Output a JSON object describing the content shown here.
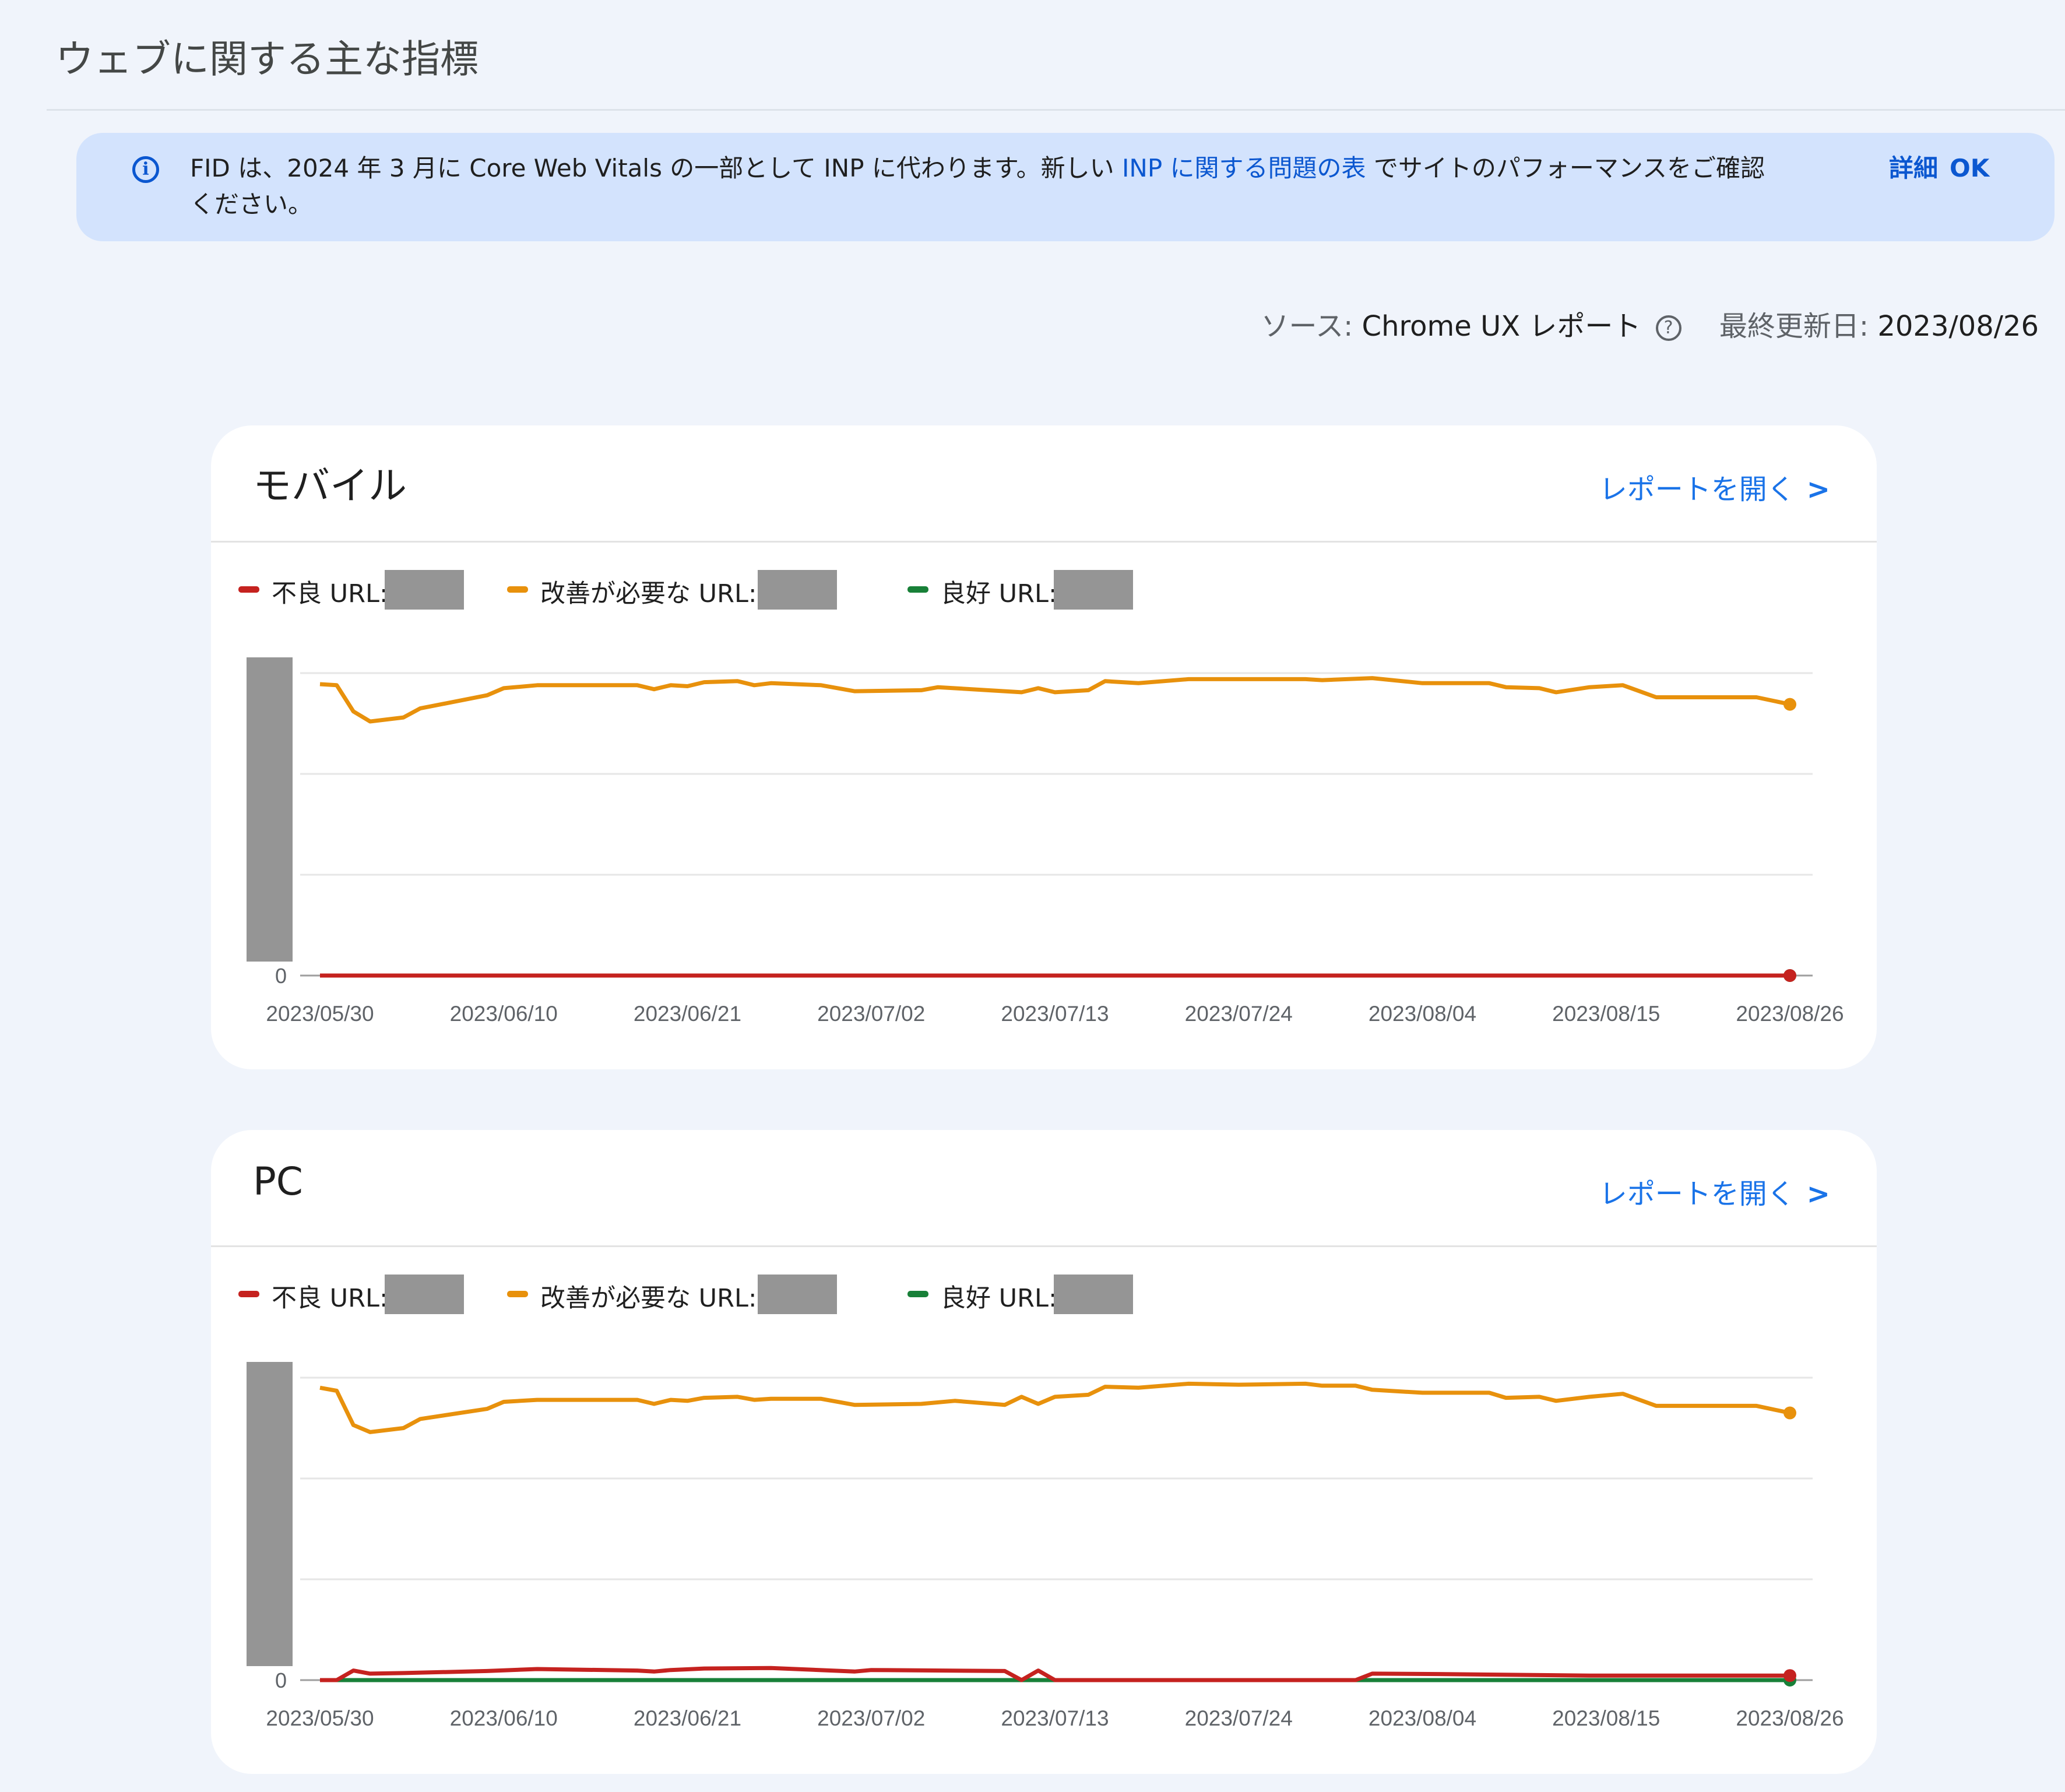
{
  "page": {
    "title": "ウェブに関する主な指標"
  },
  "banner": {
    "icon": "info-icon",
    "text_before": "FID は、2024 年 3 月に Core Web Vitals の一部として INP に代わります。新しい ",
    "link": "INP に関する問題の表",
    "text_after": " でサイトのパフォーマンスをご確認ください。",
    "details_label": "詳細",
    "ok_label": "OK"
  },
  "source": {
    "label": "ソース:",
    "value": "Chrome UX レポート",
    "help_icon": "help-circle-icon",
    "updated_label": "最終更新日:",
    "updated_value": "2023/08/26"
  },
  "colors": {
    "poor": "#c5221f",
    "needs_improvement": "#e8910c",
    "good": "#188038",
    "link": "#1a73e8",
    "banner": "#d3e3fd"
  },
  "cards": [
    {
      "title": "モバイル",
      "open_report": "レポートを開く",
      "chevron": "chevron-right-icon",
      "legend": [
        {
          "label": "不良 URL:"
        },
        {
          "label": "改善が必要な URL:"
        },
        {
          "label": "良好 URL:"
        }
      ]
    },
    {
      "title": "PC",
      "open_report": "レポートを開く",
      "chevron": "chevron-right-icon",
      "legend": [
        {
          "label": "不良 URL:"
        },
        {
          "label": "改善が必要な URL:"
        },
        {
          "label": "良好 URL:"
        }
      ]
    }
  ],
  "chart_data": [
    {
      "type": "line",
      "title": "モバイル",
      "x_ticks": [
        "2023/05/30",
        "2023/06/10",
        "2023/06/21",
        "2023/07/02",
        "2023/07/13",
        "2023/07/24",
        "2023/08/04",
        "2023/08/15",
        "2023/08/26"
      ],
      "y_ticks_visible": [
        "0"
      ],
      "y_tick_labels_redacted": true,
      "grid": true,
      "series": [
        {
          "name": "改善が必要な URL",
          "color": "#e8910c",
          "points": [
            [
              "2023/05/30",
              2.89
            ],
            [
              "2023/05/31",
              2.88
            ],
            [
              "2023/06/01",
              2.62
            ],
            [
              "2023/06/02",
              2.52
            ],
            [
              "2023/06/04",
              2.56
            ],
            [
              "2023/06/05",
              2.65
            ],
            [
              "2023/06/09",
              2.78
            ],
            [
              "2023/06/10",
              2.85
            ],
            [
              "2023/06/12",
              2.88
            ],
            [
              "2023/06/16",
              2.88
            ],
            [
              "2023/06/18",
              2.88
            ],
            [
              "2023/06/19",
              2.84
            ],
            [
              "2023/06/20",
              2.88
            ],
            [
              "2023/06/21",
              2.87
            ],
            [
              "2023/06/22",
              2.91
            ],
            [
              "2023/06/24",
              2.92
            ],
            [
              "2023/06/25",
              2.88
            ],
            [
              "2023/06/26",
              2.9
            ],
            [
              "2023/06/29",
              2.88
            ],
            [
              "2023/07/01",
              2.82
            ],
            [
              "2023/07/05",
              2.83
            ],
            [
              "2023/07/06",
              2.86
            ],
            [
              "2023/07/11",
              2.81
            ],
            [
              "2023/07/12",
              2.85
            ],
            [
              "2023/07/13",
              2.81
            ],
            [
              "2023/07/15",
              2.83
            ],
            [
              "2023/07/16",
              2.92
            ],
            [
              "2023/07/18",
              2.9
            ],
            [
              "2023/07/21",
              2.94
            ],
            [
              "2023/07/24",
              2.94
            ],
            [
              "2023/07/28",
              2.94
            ],
            [
              "2023/07/29",
              2.93
            ],
            [
              "2023/08/01",
              2.95
            ],
            [
              "2023/08/04",
              2.9
            ],
            [
              "2023/08/08",
              2.9
            ],
            [
              "2023/08/09",
              2.86
            ],
            [
              "2023/08/11",
              2.85
            ],
            [
              "2023/08/12",
              2.81
            ],
            [
              "2023/08/14",
              2.86
            ],
            [
              "2023/08/16",
              2.88
            ],
            [
              "2023/08/18",
              2.76
            ],
            [
              "2023/08/24",
              2.76
            ],
            [
              "2023/08/26",
              2.69
            ]
          ]
        },
        {
          "name": "良好 URL",
          "color": "#188038",
          "points": [
            [
              "2023/05/30",
              0
            ],
            [
              "2023/08/26",
              0
            ]
          ]
        },
        {
          "name": "不良 URL",
          "color": "#c5221f",
          "points": [
            [
              "2023/05/30",
              0
            ],
            [
              "2023/08/26",
              0
            ]
          ]
        }
      ]
    },
    {
      "type": "line",
      "title": "PC",
      "x_ticks": [
        "2023/05/30",
        "2023/06/10",
        "2023/06/21",
        "2023/07/02",
        "2023/07/13",
        "2023/07/24",
        "2023/08/04",
        "2023/08/15",
        "2023/08/26"
      ],
      "y_ticks_visible": [
        "0"
      ],
      "y_tick_labels_redacted": true,
      "grid": true,
      "series": [
        {
          "name": "改善が必要な URL",
          "color": "#e8910c",
          "points": [
            [
              "2023/05/30",
              2.9
            ],
            [
              "2023/05/31",
              2.87
            ],
            [
              "2023/06/01",
              2.53
            ],
            [
              "2023/06/02",
              2.46
            ],
            [
              "2023/06/04",
              2.5
            ],
            [
              "2023/06/05",
              2.59
            ],
            [
              "2023/06/09",
              2.69
            ],
            [
              "2023/06/10",
              2.76
            ],
            [
              "2023/06/12",
              2.78
            ],
            [
              "2023/06/18",
              2.78
            ],
            [
              "2023/06/19",
              2.74
            ],
            [
              "2023/06/20",
              2.78
            ],
            [
              "2023/06/21",
              2.77
            ],
            [
              "2023/06/22",
              2.8
            ],
            [
              "2023/06/24",
              2.81
            ],
            [
              "2023/06/25",
              2.78
            ],
            [
              "2023/06/26",
              2.79
            ],
            [
              "2023/06/29",
              2.79
            ],
            [
              "2023/07/01",
              2.73
            ],
            [
              "2023/07/05",
              2.74
            ],
            [
              "2023/07/07",
              2.77
            ],
            [
              "2023/07/10",
              2.73
            ],
            [
              "2023/07/11",
              2.81
            ],
            [
              "2023/07/12",
              2.74
            ],
            [
              "2023/07/13",
              2.81
            ],
            [
              "2023/07/15",
              2.83
            ],
            [
              "2023/07/16",
              2.91
            ],
            [
              "2023/07/18",
              2.9
            ],
            [
              "2023/07/21",
              2.94
            ],
            [
              "2023/07/24",
              2.93
            ],
            [
              "2023/07/28",
              2.94
            ],
            [
              "2023/07/29",
              2.92
            ],
            [
              "2023/07/31",
              2.92
            ],
            [
              "2023/08/01",
              2.88
            ],
            [
              "2023/08/04",
              2.85
            ],
            [
              "2023/08/08",
              2.85
            ],
            [
              "2023/08/09",
              2.8
            ],
            [
              "2023/08/11",
              2.81
            ],
            [
              "2023/08/12",
              2.77
            ],
            [
              "2023/08/14",
              2.81
            ],
            [
              "2023/08/16",
              2.84
            ],
            [
              "2023/08/18",
              2.72
            ],
            [
              "2023/08/24",
              2.72
            ],
            [
              "2023/08/26",
              2.65
            ]
          ]
        },
        {
          "name": "良好 URL",
          "color": "#188038",
          "points": [
            [
              "2023/05/30",
              0
            ],
            [
              "2023/08/26",
              0
            ]
          ]
        },
        {
          "name": "不良 URL",
          "color": "#c5221f",
          "points": [
            [
              "2023/05/30",
              0
            ],
            [
              "2023/05/31",
              0
            ],
            [
              "2023/06/01",
              0.095
            ],
            [
              "2023/06/02",
              0.064
            ],
            [
              "2023/06/04",
              0.07
            ],
            [
              "2023/06/09",
              0.09
            ],
            [
              "2023/06/12",
              0.11
            ],
            [
              "2023/06/18",
              0.095
            ],
            [
              "2023/06/19",
              0.085
            ],
            [
              "2023/06/20",
              0.1
            ],
            [
              "2023/06/22",
              0.115
            ],
            [
              "2023/06/26",
              0.12
            ],
            [
              "2023/07/01",
              0.085
            ],
            [
              "2023/07/02",
              0.1
            ],
            [
              "2023/07/10",
              0.09
            ],
            [
              "2023/07/11",
              0
            ],
            [
              "2023/07/12",
              0.095
            ],
            [
              "2023/07/13",
              0
            ],
            [
              "2023/07/31",
              0
            ],
            [
              "2023/08/01",
              0.064
            ],
            [
              "2023/08/05",
              0.06
            ],
            [
              "2023/08/14",
              0.045
            ],
            [
              "2023/08/26",
              0.045
            ]
          ]
        }
      ]
    }
  ]
}
